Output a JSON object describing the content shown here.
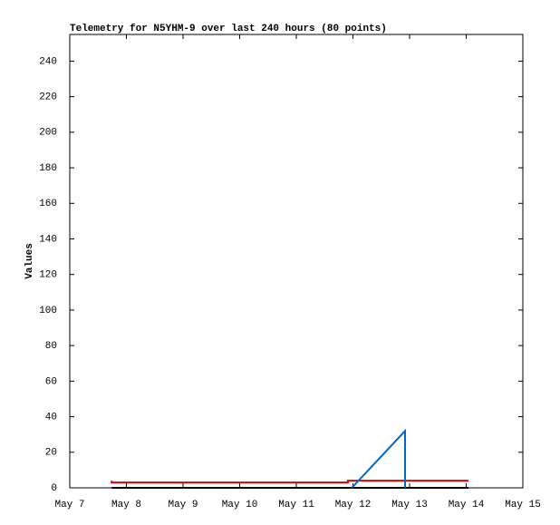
{
  "chart_data": {
    "type": "line",
    "title": "Telemetry for N5YHM-9 over last 240 hours (80 points)",
    "ylabel": "Values",
    "xlim": [
      7,
      15
    ],
    "xticks": [
      {
        "value": 7,
        "label": "May 7"
      },
      {
        "value": 8,
        "label": "May 8"
      },
      {
        "value": 9,
        "label": "May 9"
      },
      {
        "value": 10,
        "label": "May 10"
      },
      {
        "value": 11,
        "label": "May 11"
      },
      {
        "value": 12,
        "label": "May 12"
      },
      {
        "value": 13,
        "label": "May 13"
      },
      {
        "value": 14,
        "label": "May 14"
      },
      {
        "value": 15,
        "label": "May 15"
      }
    ],
    "ylim": [
      0,
      255
    ],
    "yticks": [
      0,
      20,
      40,
      60,
      80,
      100,
      120,
      140,
      160,
      180,
      200,
      220,
      240
    ],
    "series": [
      {
        "color": "#000000",
        "x": [
          7.74,
          14.04
        ],
        "values": [
          0,
          0
        ]
      },
      {
        "color": "#e00000",
        "x": [
          7.74,
          7.74,
          11.91,
          11.91,
          14.04
        ],
        "values": [
          4,
          3,
          3,
          4,
          4
        ]
      },
      {
        "color": "#0066cc",
        "x": [
          11.98,
          12.92,
          12.92
        ],
        "values": [
          0,
          32,
          0
        ]
      }
    ]
  }
}
